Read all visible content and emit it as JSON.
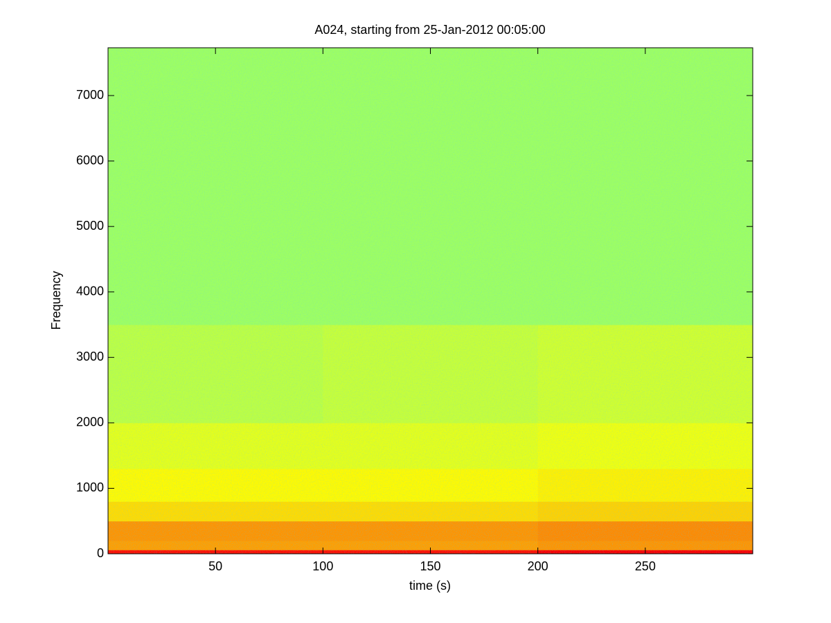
{
  "chart_data": {
    "type": "heatmap",
    "title": "A024, starting from 25-Jan-2012 00:05:00",
    "x_label": "time (s)",
    "y_label": "Frequency",
    "colormap": "jet",
    "x": [
      0,
      100,
      200,
      300
    ],
    "y": [
      0,
      60,
      200,
      500,
      800,
      1300,
      2000,
      3500,
      7730
    ],
    "z": [
      [
        0.86,
        0.86,
        0.88
      ],
      [
        0.72,
        0.72,
        0.73
      ],
      [
        0.73,
        0.73,
        0.74
      ],
      [
        0.66,
        0.66,
        0.67
      ],
      [
        0.63,
        0.63,
        0.64
      ],
      [
        0.6,
        0.6,
        0.61
      ],
      [
        0.56,
        0.57,
        0.58
      ],
      [
        0.53,
        0.53,
        0.53
      ]
    ],
    "xlim": [
      0,
      300
    ],
    "ylim": [
      0,
      7730
    ],
    "xticks": [
      50,
      100,
      150,
      200,
      250
    ],
    "yticks": [
      0,
      1000,
      2000,
      3000,
      4000,
      5000,
      6000,
      7000
    ]
  }
}
